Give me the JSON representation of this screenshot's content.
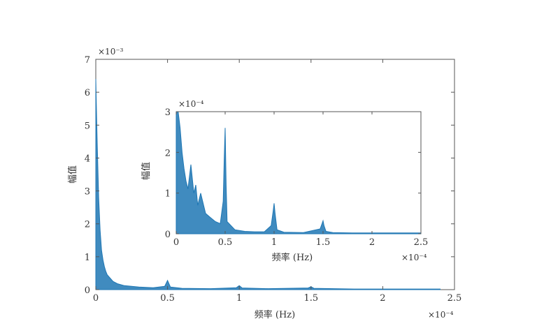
{
  "chart_data": [
    {
      "type": "line",
      "id": "main",
      "xlabel": "频率 (Hz)",
      "ylabel": "幅值",
      "x_multiplier": "×10⁻⁴",
      "y_multiplier": "×10⁻³",
      "xlim": [
        0,
        2.5
      ],
      "ylim": [
        0,
        7
      ],
      "xticks": [
        0,
        0.5,
        1,
        1.5,
        2,
        2.5
      ],
      "xtick_labels": [
        "0",
        "0.5",
        "1",
        "1.5",
        "2",
        "2.5"
      ],
      "yticks": [
        0,
        1,
        2,
        3,
        4,
        5,
        6,
        7
      ],
      "ytick_labels": [
        "0",
        "1",
        "2",
        "3",
        "4",
        "5",
        "6",
        "7"
      ],
      "grid": false,
      "color": "#1f77b4",
      "series": [
        {
          "x": [
            0,
            0.005,
            0.01,
            0.02,
            0.03,
            0.04,
            0.05,
            0.06,
            0.07,
            0.08,
            0.1,
            0.12,
            0.15,
            0.2,
            0.3,
            0.4,
            0.48,
            0.5,
            0.52,
            0.6,
            0.8,
            0.98,
            1.0,
            1.02,
            1.2,
            1.48,
            1.5,
            1.52,
            1.8,
            2.0,
            2.2,
            2.4
          ],
          "y": [
            6.4,
            5.4,
            4.4,
            2.8,
            1.8,
            1.2,
            0.9,
            0.7,
            0.55,
            0.45,
            0.35,
            0.25,
            0.18,
            0.12,
            0.08,
            0.06,
            0.1,
            0.28,
            0.08,
            0.04,
            0.03,
            0.06,
            0.12,
            0.05,
            0.03,
            0.05,
            0.09,
            0.04,
            0.02,
            0.02,
            0.02,
            0.02
          ]
        }
      ]
    },
    {
      "type": "line",
      "id": "inset",
      "xlabel": "频率 (Hz)",
      "ylabel": "幅值",
      "x_multiplier": "×10⁻⁴",
      "y_multiplier": "×10⁻⁴",
      "xlim": [
        0,
        2.5
      ],
      "ylim": [
        0,
        3
      ],
      "xticks": [
        0,
        0.5,
        1,
        1.5,
        2,
        2.5
      ],
      "xtick_labels": [
        "0",
        "0.5",
        "1",
        "1.5",
        "2",
        "2.5"
      ],
      "yticks": [
        0,
        1,
        2,
        3
      ],
      "ytick_labels": [
        "0",
        "1",
        "2",
        "3"
      ],
      "grid": false,
      "color": "#1f77b4",
      "series": [
        {
          "x": [
            0,
            0.02,
            0.04,
            0.06,
            0.08,
            0.1,
            0.12,
            0.15,
            0.18,
            0.2,
            0.22,
            0.25,
            0.3,
            0.35,
            0.4,
            0.45,
            0.48,
            0.49,
            0.5,
            0.51,
            0.52,
            0.6,
            0.7,
            0.8,
            0.9,
            0.97,
            0.99,
            1.0,
            1.01,
            1.03,
            1.1,
            1.3,
            1.47,
            1.49,
            1.5,
            1.51,
            1.53,
            1.6,
            1.8,
            2.0,
            2.2,
            2.5
          ],
          "y": [
            3.0,
            3.0,
            2.6,
            2.0,
            1.6,
            1.3,
            1.1,
            1.7,
            1.0,
            1.2,
            0.7,
            1.0,
            0.5,
            0.4,
            0.3,
            0.25,
            0.8,
            1.8,
            2.6,
            1.2,
            0.3,
            0.1,
            0.06,
            0.05,
            0.05,
            0.2,
            0.55,
            0.75,
            0.5,
            0.1,
            0.04,
            0.03,
            0.12,
            0.25,
            0.32,
            0.2,
            0.06,
            0.03,
            0.02,
            0.02,
            0.02,
            0.02
          ]
        }
      ]
    }
  ]
}
